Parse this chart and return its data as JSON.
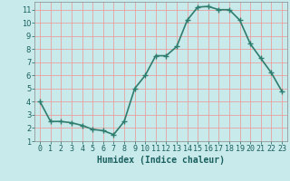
{
  "x": [
    0,
    1,
    2,
    3,
    4,
    5,
    6,
    7,
    8,
    9,
    10,
    11,
    12,
    13,
    14,
    15,
    16,
    17,
    18,
    19,
    20,
    21,
    22,
    23
  ],
  "y": [
    4.0,
    2.5,
    2.5,
    2.4,
    2.2,
    1.9,
    1.8,
    1.5,
    2.5,
    5.0,
    6.0,
    7.5,
    7.5,
    8.2,
    10.2,
    11.2,
    11.25,
    11.0,
    11.0,
    10.2,
    8.4,
    7.3,
    6.2,
    4.8
  ],
  "line_color": "#2e7d6e",
  "marker": "+",
  "marker_size": 4,
  "marker_lw": 1.0,
  "bg_color": "#c8eaea",
  "grid_color": "#e8a0a0",
  "xlabel": "Humidex (Indice chaleur)",
  "xlim": [
    -0.5,
    23.5
  ],
  "ylim": [
    1.0,
    11.6
  ],
  "yticks": [
    1,
    2,
    3,
    4,
    5,
    6,
    7,
    8,
    9,
    10,
    11
  ],
  "xlabel_fontsize": 7,
  "tick_fontsize": 6,
  "linewidth": 1.2
}
